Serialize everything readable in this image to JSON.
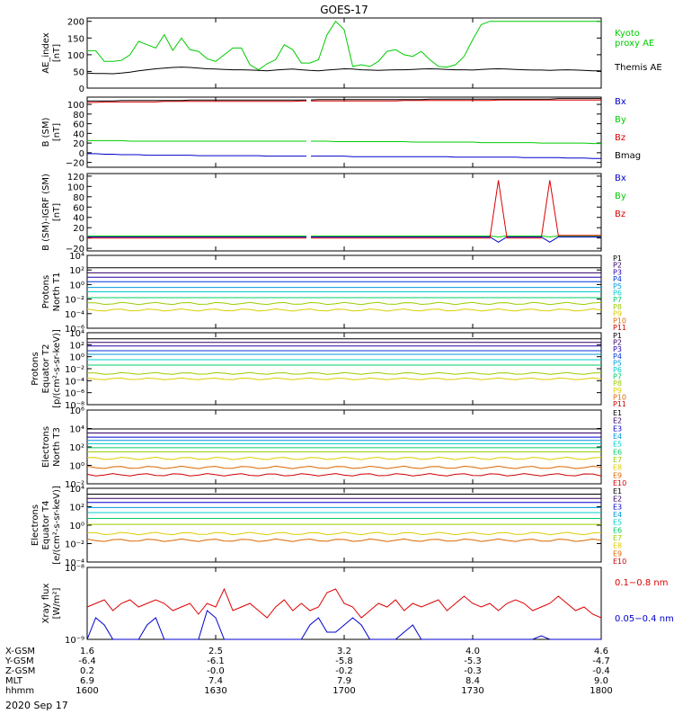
{
  "title": "GOES-17",
  "date": "2020 Sep 17",
  "x_ticks": [
    "1600",
    "1630",
    "1700",
    "1730",
    "1800"
  ],
  "ephemeris": [
    {
      "label": "X-GSM",
      "values": [
        "1.6",
        "2.5",
        "3.2",
        "4.0",
        "4.6"
      ]
    },
    {
      "label": "Y-GSM",
      "values": [
        "-6.4",
        "-6.1",
        "-5.8",
        "-5.3",
        "-4.7"
      ]
    },
    {
      "label": "Z-GSM",
      "values": [
        "0.2",
        "-0.0",
        "-0.2",
        "-0.3",
        "-0.4"
      ]
    },
    {
      "label": "MLT",
      "values": [
        "6.9",
        "7.4",
        "7.9",
        "8.4",
        "9.0"
      ]
    },
    {
      "label": "hhmm",
      "values": [
        "1600",
        "1630",
        "1700",
        "1730",
        "1800"
      ]
    }
  ],
  "colors": {
    "black": "#000000",
    "blue": "#0000cc",
    "green": "#00cc00",
    "red": "#dd0000",
    "p": [
      "#000000",
      "#330066",
      "#2200aa",
      "#0033dd",
      "#0099dd",
      "#00cccc",
      "#00cc66",
      "#99cc00",
      "#ddcc00",
      "#dd6600",
      "#cc0000"
    ],
    "e": [
      "#000000",
      "#330066",
      "#0000cc",
      "#0099dd",
      "#00cccc",
      "#00cc66",
      "#99cc00",
      "#ddcc00",
      "#dd6600",
      "#cc0000"
    ]
  },
  "chart_data": [
    {
      "type": "line",
      "id": "ae",
      "ylabel": "AE_index\n[nT]",
      "yticks": [
        "0",
        "50",
        "100",
        "150",
        "200"
      ],
      "ylim": [
        0,
        210
      ],
      "series": [
        {
          "name": "Kyoto\nproxy AE",
          "color": "#00cc00",
          "values": [
            112,
            112,
            80,
            80,
            83,
            100,
            140,
            130,
            120,
            160,
            113,
            150,
            115,
            110,
            88,
            80,
            100,
            120,
            120,
            70,
            55,
            73,
            85,
            130,
            115,
            75,
            75,
            85,
            160,
            200,
            175,
            65,
            70,
            65,
            80,
            110,
            115,
            100,
            95,
            110,
            85,
            65,
            63,
            70,
            95,
            145,
            190,
            200,
            200,
            200,
            200,
            200,
            200,
            200,
            200,
            200,
            200,
            200,
            200,
            200,
            200
          ]
        },
        {
          "name": "Themis AE",
          "color": "#000000",
          "values": [
            45,
            44,
            44,
            43,
            45,
            48,
            52,
            55,
            58,
            60,
            62,
            63,
            62,
            60,
            58,
            57,
            56,
            55,
            55,
            54,
            53,
            52,
            54,
            56,
            57,
            55,
            53,
            52,
            54,
            56,
            58,
            57,
            55,
            54,
            53,
            54,
            55,
            55,
            56,
            57,
            58,
            57,
            56,
            55,
            55,
            54,
            56,
            57,
            58,
            57,
            56,
            55,
            54,
            54,
            53,
            54,
            55,
            54,
            53,
            52,
            52
          ]
        }
      ]
    },
    {
      "type": "line",
      "id": "bsm",
      "ylabel": "B (SM)\n[nT]",
      "yticks": [
        "−20",
        "0",
        "20",
        "40",
        "60",
        "80",
        "100"
      ],
      "ylim": [
        -30,
        115
      ],
      "series": [
        {
          "name": "Bx",
          "color": "#0000cc",
          "values": [
            -2,
            -2,
            -3,
            -3,
            -4,
            -4,
            -4,
            -5,
            -5,
            -5,
            -5,
            -5,
            -5,
            -6,
            -6,
            -6,
            -6,
            -6,
            -6,
            -6,
            -6,
            -7,
            -7,
            -7,
            -7,
            -7,
            -7,
            -7,
            -7,
            -7,
            -7,
            -8,
            -8,
            -8,
            -8,
            -8,
            -8,
            -8,
            -8,
            -8,
            -8,
            -8,
            -8,
            -9,
            -9,
            -9,
            -9,
            -9,
            -9,
            -9,
            -9,
            -10,
            -10,
            -10,
            -10,
            -10,
            -11,
            -11,
            -11,
            -12,
            -12
          ]
        },
        {
          "name": "By",
          "color": "#00cc00",
          "values": [
            25,
            25,
            25,
            25,
            25,
            24,
            24,
            24,
            24,
            24,
            24,
            24,
            24,
            24,
            24,
            24,
            24,
            24,
            24,
            24,
            24,
            24,
            24,
            24,
            24,
            24,
            24,
            24,
            24,
            23,
            23,
            23,
            23,
            23,
            23,
            23,
            23,
            23,
            22,
            22,
            22,
            22,
            22,
            22,
            22,
            22,
            21,
            21,
            21,
            21,
            21,
            21,
            21,
            20,
            20,
            20,
            20,
            20,
            20,
            19,
            19
          ]
        },
        {
          "name": "Bz",
          "color": "#dd0000",
          "values": [
            104,
            104,
            105,
            105,
            105,
            105,
            105,
            105,
            105,
            106,
            106,
            106,
            106,
            106,
            106,
            106,
            106,
            106,
            106,
            106,
            106,
            106,
            106,
            106,
            106,
            107,
            107,
            107,
            107,
            107,
            107,
            107,
            107,
            107,
            107,
            107,
            107,
            108,
            108,
            108,
            108,
            108,
            108,
            108,
            108,
            108,
            108,
            108,
            109,
            109,
            109,
            109,
            109,
            109,
            109,
            109,
            109,
            109,
            109,
            109,
            109
          ]
        },
        {
          "name": "Bmag",
          "color": "#000000",
          "values": [
            107,
            107,
            107,
            107,
            108,
            108,
            108,
            108,
            108,
            108,
            108,
            108,
            109,
            109,
            109,
            109,
            109,
            109,
            109,
            109,
            109,
            109,
            109,
            109,
            109,
            109,
            109,
            110,
            110,
            110,
            110,
            110,
            110,
            110,
            110,
            110,
            110,
            110,
            110,
            110,
            111,
            111,
            111,
            111,
            111,
            111,
            111,
            111,
            111,
            111,
            111,
            111,
            111,
            111,
            111,
            112,
            112,
            112,
            112,
            112,
            112
          ]
        }
      ]
    },
    {
      "type": "line",
      "id": "bigrf",
      "ylabel": "B (SM)-IGRF (SM)\n[nT]",
      "yticks": [
        "−20",
        "0",
        "20",
        "40",
        "60",
        "80",
        "100",
        "120"
      ],
      "ylim": [
        -25,
        125
      ],
      "series": [
        {
          "name": "Bx",
          "color": "#0000cc",
          "values": [
            2,
            2,
            2,
            2,
            2,
            2,
            2,
            2,
            2,
            2,
            2,
            2,
            2,
            2,
            2,
            2,
            2,
            2,
            2,
            2,
            2,
            2,
            2,
            2,
            2,
            2,
            2,
            2,
            2,
            2,
            2,
            2,
            2,
            2,
            2,
            2,
            2,
            2,
            2,
            2,
            2,
            2,
            2,
            2,
            2,
            2,
            2,
            2,
            -8,
            2,
            2,
            2,
            2,
            2,
            -8,
            2,
            2,
            2,
            2,
            2,
            2
          ]
        },
        {
          "name": "By",
          "color": "#00cc00",
          "values": [
            4,
            4,
            4,
            4,
            4,
            4,
            4,
            4,
            4,
            4,
            4,
            4,
            4,
            4,
            4,
            4,
            4,
            4,
            4,
            4,
            4,
            4,
            4,
            4,
            4,
            4,
            4,
            4,
            4,
            4,
            4,
            4,
            4,
            4,
            4,
            4,
            4,
            4,
            4,
            4,
            4,
            4,
            4,
            4,
            4,
            4,
            4,
            4,
            2,
            4,
            4,
            4,
            4,
            4,
            2,
            4,
            4,
            4,
            4,
            4,
            4
          ]
        },
        {
          "name": "Bz",
          "color": "#dd0000",
          "values": [
            0,
            0,
            0,
            0,
            0,
            0,
            0,
            0,
            0,
            0,
            0,
            0,
            0,
            0,
            0,
            0,
            0,
            0,
            0,
            0,
            0,
            0,
            0,
            0,
            0,
            0,
            0,
            0,
            0,
            0,
            0,
            0,
            0,
            0,
            0,
            0,
            0,
            0,
            0,
            0,
            0,
            0,
            0,
            0,
            0,
            0,
            0,
            0,
            112,
            0,
            0,
            0,
            0,
            0,
            112,
            5,
            5,
            5,
            5,
            5,
            5
          ]
        }
      ]
    },
    {
      "type": "line",
      "id": "pn",
      "log": true,
      "ylabel": "Protons\nNorth T1",
      "yticks": [
        "10⁴",
        "10²",
        "10⁰",
        "10⁻²",
        "10⁻⁴",
        "10⁻⁶"
      ],
      "ylim": [
        -6,
        4
      ],
      "legend": [
        "P1",
        "P2",
        "P3",
        "P4",
        "P5",
        "P6",
        "P7",
        "P8",
        "P9",
        "P10",
        "P11"
      ],
      "levels": [
        2.3,
        1.6,
        1.0,
        0.4,
        -0.4,
        -1.0,
        -1.8,
        -2.6,
        -3.5,
        null,
        null
      ]
    },
    {
      "type": "line",
      "id": "pe",
      "log": true,
      "ylabel": "Protons\nEquator T2\n[p/(cm²-s-sr-keV)]",
      "yticks": [
        "10⁴",
        "10²",
        "10⁰",
        "10⁻²",
        "10⁻⁴",
        "10⁻⁶",
        "10⁻⁸"
      ],
      "ylim": [
        -8,
        4
      ],
      "legend": [
        "P1",
        "P2",
        "P3",
        "P4",
        "P5",
        "P6",
        "P7",
        "P8",
        "P9",
        "P10",
        "P11"
      ],
      "levels": [
        3.0,
        2.4,
        1.8,
        1.0,
        0.4,
        -0.5,
        -1.4,
        -2.8,
        -3.7,
        null,
        null
      ]
    },
    {
      "type": "line",
      "id": "en",
      "log": true,
      "ylabel": "Electrons\nNorth T3",
      "yticks": [
        "10⁶",
        "10⁴",
        "10²",
        "10⁰",
        "10⁻²"
      ],
      "ylim": [
        -3,
        6
      ],
      "legend": [
        "E1",
        "E2",
        "E3",
        "E4",
        "E5",
        "E6",
        "E7",
        "E8",
        "E9",
        "E10"
      ],
      "levels": [
        3.7,
        3.2,
        2.7,
        2.3,
        1.9,
        1.4,
        0.9,
        0.1,
        -1.0,
        -1.9
      ]
    },
    {
      "type": "line",
      "id": "ee",
      "log": true,
      "ylabel": "Electrons\nEquator T4\n[e/(cm²-s-sr-keV)]",
      "yticks": [
        "10⁴",
        "10²",
        "10⁰",
        "10⁻²",
        "10⁻⁴"
      ],
      "ylim": [
        -4.5,
        4.3
      ],
      "legend": [
        "E1",
        "E2",
        "E3",
        "E4",
        "E5",
        "E6",
        "E7",
        "E8",
        "E9",
        "E10"
      ],
      "levels": [
        3.6,
        3.1,
        2.6,
        2.0,
        1.4,
        0.7,
        0.0,
        -1.1,
        -1.9,
        null
      ]
    },
    {
      "type": "line",
      "id": "xray",
      "log": true,
      "ylabel": "Xray flux\n[W/m²]",
      "yticks": [
        "10⁻⁸",
        "10⁻⁹"
      ],
      "ylim": [
        -9,
        -8
      ],
      "series": [
        {
          "name": "0.1−0.8 nm",
          "color": "#dd0000",
          "values": [
            -8.55,
            -8.5,
            -8.45,
            -8.6,
            -8.5,
            -8.45,
            -8.55,
            -8.5,
            -8.45,
            -8.5,
            -8.6,
            -8.55,
            -8.5,
            -8.65,
            -8.5,
            -8.55,
            -8.3,
            -8.6,
            -8.55,
            -8.5,
            -8.6,
            -8.7,
            -8.55,
            -8.45,
            -8.6,
            -8.5,
            -8.6,
            -8.55,
            -8.35,
            -8.3,
            -8.5,
            -8.55,
            -8.7,
            -8.6,
            -8.5,
            -8.55,
            -8.45,
            -8.6,
            -8.5,
            -8.55,
            -8.5,
            -8.45,
            -8.6,
            -8.5,
            -8.4,
            -8.5,
            -8.55,
            -8.5,
            -8.6,
            -8.5,
            -8.45,
            -8.5,
            -8.6,
            -8.55,
            -8.5,
            -8.4,
            -8.5,
            -8.6,
            -8.55,
            -8.65,
            -8.7
          ]
        },
        {
          "name": "0.05−0.4 nm",
          "color": "#0000cc",
          "values": [
            -9,
            -8.7,
            -8.8,
            -9,
            -9,
            -9,
            -9,
            -8.8,
            -8.7,
            -9,
            -9,
            -9,
            -9,
            -9,
            -8.6,
            -8.7,
            -9,
            -9,
            -9,
            -9,
            -9,
            -9,
            -9,
            -9,
            -9,
            -9,
            -8.8,
            -8.7,
            -8.9,
            -8.9,
            -8.8,
            -8.7,
            -8.8,
            -9,
            -9,
            -9,
            -9,
            -8.9,
            -8.8,
            -9,
            -9,
            -9,
            -9,
            -9,
            -9,
            -9,
            -9,
            -9,
            -9,
            -9,
            -9,
            -9,
            -9,
            -8.95,
            -9,
            -9,
            -9,
            -9,
            -9,
            -9,
            -9
          ]
        }
      ]
    }
  ]
}
